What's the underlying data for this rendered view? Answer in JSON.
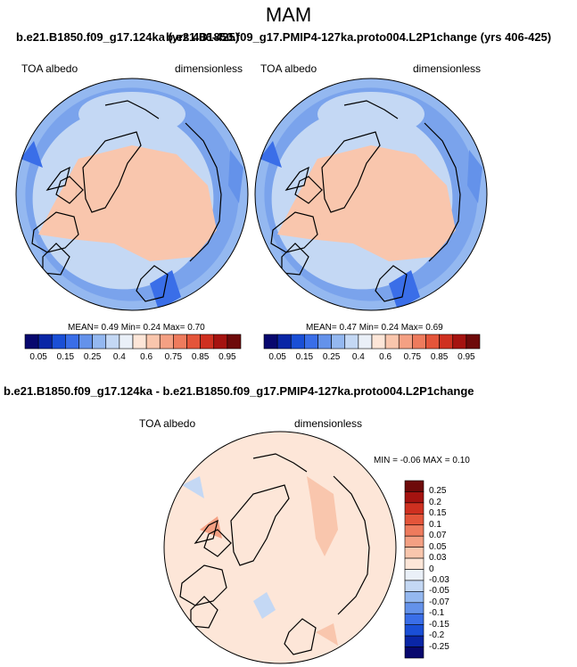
{
  "figure_title": "MAM",
  "panels": [
    {
      "title": "b.e21.B1850.f09_g17.124ka (yrs 406-425)",
      "left_label": "TOA albedo",
      "right_label": "dimensionless",
      "stats": "MEAN=  0.49  Min=  0.24  Max=  0.70"
    },
    {
      "title": "b.e21.B1850.f09_g17.PMIP4-127ka.proto004.L2P1change (yrs 406-425)",
      "left_label": "TOA albedo",
      "right_label": "dimensionless",
      "stats": "MEAN=  0.47  Min=  0.24  Max=  0.69"
    },
    {
      "title": "b.e21.B1850.f09_g17.124ka - b.e21.B1850.f09_g17.PMIP4-127ka.proto004.L2P1change",
      "left_label": "TOA albedo",
      "right_label": "dimensionless",
      "stats": "MIN =  -0.06 MAX =   0.10"
    }
  ],
  "colors": {
    "absolute_scale": [
      "#08086e",
      "#0a26a6",
      "#1a4fd6",
      "#3a6ee8",
      "#6492ea",
      "#94b8f0",
      "#c4d8f4",
      "#eaf0f8",
      "#fde6d8",
      "#f9c6ad",
      "#f4a083",
      "#ee7b5d",
      "#e4553a",
      "#cf3020",
      "#a51310",
      "#6e0a0a"
    ],
    "diff_scale": [
      "#08086e",
      "#0a26a6",
      "#1a4fd6",
      "#3a6ee8",
      "#6492ea",
      "#94b8f0",
      "#c4d8f4",
      "#eaf0f8",
      "#fde6d8",
      "#f9c6ad",
      "#f4a083",
      "#ee7b5d",
      "#e4553a",
      "#cf3020",
      "#a51310",
      "#6e0a0a"
    ]
  },
  "chart_data": [
    {
      "type": "heatmap",
      "projection": "north polar stereographic",
      "title": "b.e21.B1850.f09_g17.124ka (yrs 406-425)",
      "variable": "TOA albedo",
      "units": "dimensionless",
      "mean": 0.49,
      "min": 0.24,
      "max": 0.7,
      "colorbar_ticks": [
        "0.05",
        "0.15",
        "0.25",
        "0.4",
        "0.6",
        "0.75",
        "0.85",
        "0.95"
      ]
    },
    {
      "type": "heatmap",
      "projection": "north polar stereographic",
      "title": "b.e21.B1850.f09_g17.PMIP4-127ka.proto004.L2P1change (yrs 406-425)",
      "variable": "TOA albedo",
      "units": "dimensionless",
      "mean": 0.47,
      "min": 0.24,
      "max": 0.69,
      "colorbar_ticks": [
        "0.05",
        "0.15",
        "0.25",
        "0.4",
        "0.6",
        "0.75",
        "0.85",
        "0.95"
      ]
    },
    {
      "type": "heatmap",
      "projection": "north polar stereographic",
      "title": "b.e21.B1850.f09_g17.124ka - b.e21.B1850.f09_g17.PMIP4-127ka.proto004.L2P1change",
      "variable": "TOA albedo",
      "units": "dimensionless",
      "min": -0.06,
      "max": 0.1,
      "colorbar_ticks": [
        "0.25",
        "0.2",
        "0.15",
        "0.1",
        "0.07",
        "0.05",
        "0.03",
        "0",
        "-0.03",
        "-0.05",
        "-0.07",
        "-0.1",
        "-0.15",
        "-0.2",
        "-0.25"
      ]
    }
  ]
}
